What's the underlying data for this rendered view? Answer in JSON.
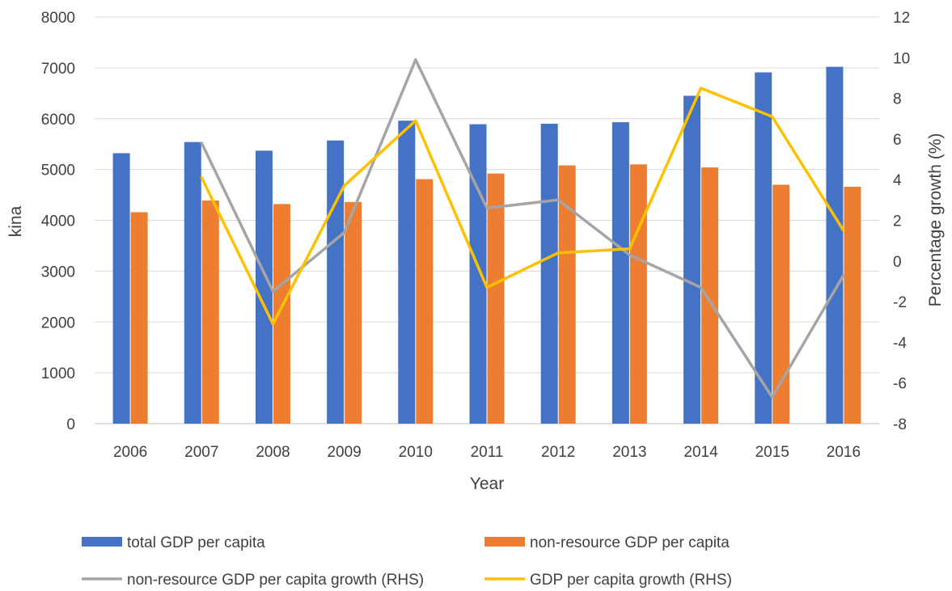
{
  "chart_data": {
    "type": "bar",
    "categories": [
      "2006",
      "2007",
      "2008",
      "2009",
      "2010",
      "2011",
      "2012",
      "2013",
      "2014",
      "2015",
      "2016"
    ],
    "xlabel": "Year",
    "ylabel": "kina",
    "y2label": "Percentage growth (%)",
    "ylim": [
      0,
      8000
    ],
    "yticks": [
      "0",
      "1000",
      "2000",
      "3000",
      "4000",
      "5000",
      "6000",
      "7000",
      "8000"
    ],
    "y2lim": [
      -8,
      12
    ],
    "y2ticks": [
      "-8",
      "-6",
      "-4",
      "-2",
      "0",
      "2",
      "4",
      "6",
      "8",
      "10",
      "12"
    ],
    "grid": true,
    "legend_position": "bottom",
    "series": [
      {
        "name": "total GDP per capita",
        "type": "bar",
        "axis": "left",
        "color": "#4472C4",
        "values": [
          5320,
          5540,
          5370,
          5570,
          5960,
          5890,
          5900,
          5930,
          6450,
          6910,
          7020
        ]
      },
      {
        "name": "non-resource GDP per capita",
        "type": "bar",
        "axis": "left",
        "color": "#ED7D31",
        "values": [
          4160,
          4390,
          4320,
          4360,
          4810,
          4920,
          5080,
          5100,
          5040,
          4700,
          4660
        ]
      },
      {
        "name": "non-resource GDP per capita growth (RHS)",
        "type": "line",
        "axis": "right",
        "color": "#A5A5A5",
        "values": [
          null,
          5.8,
          -1.5,
          1.4,
          9.9,
          2.6,
          3.0,
          0.3,
          -1.3,
          -6.7,
          -0.7
        ]
      },
      {
        "name": "GDP per capita growth (RHS)",
        "type": "line",
        "axis": "right",
        "color": "#FFC000",
        "values": [
          null,
          4.1,
          -3.1,
          3.7,
          6.9,
          -1.3,
          0.4,
          0.6,
          8.5,
          7.1,
          1.5
        ]
      }
    ]
  }
}
